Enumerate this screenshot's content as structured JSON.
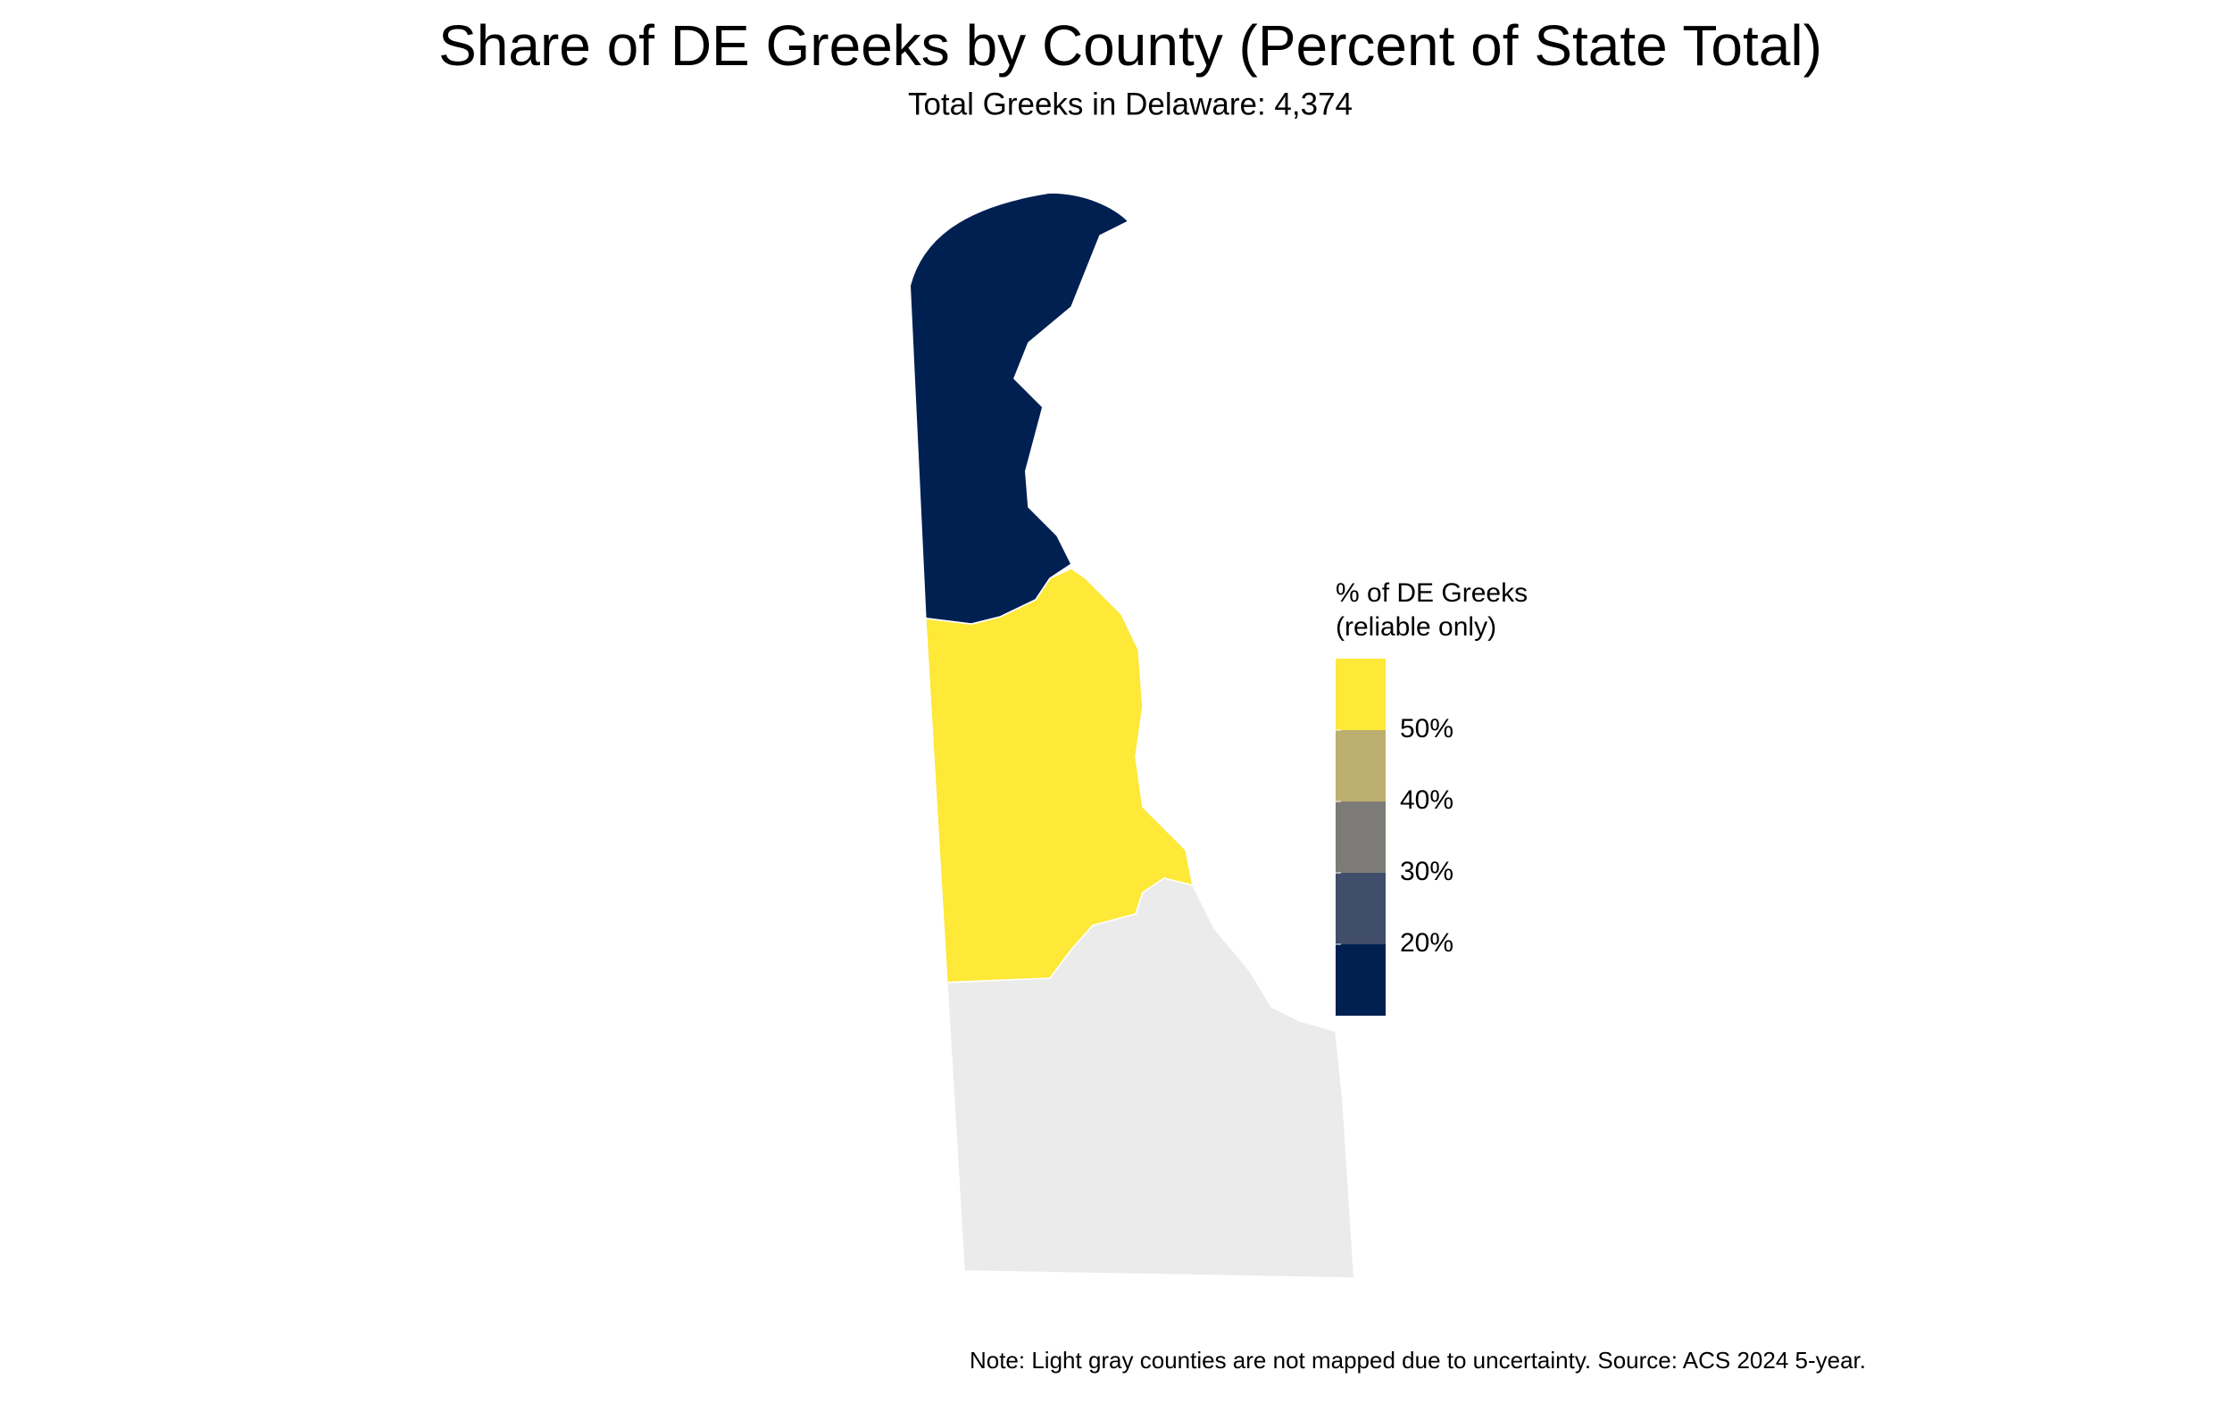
{
  "chart_data": {
    "type": "choropleth",
    "title": "Share of DE Greeks by County (Percent of State Total)",
    "subtitle": "Total Greeks in Delaware: 4,374",
    "note": "Note: Light gray counties are not mapped due to uncertainty. Source: ACS 2024 5-year.",
    "regions": [
      {
        "color": "#002051"
      },
      {
        "color": "#fee838"
      },
      {
        "color": "#ebebeb"
      }
    ],
    "legend": {
      "title": [
        "% of DE Greeks",
        "(reliable only)"
      ],
      "colors": [
        "#002051",
        "#404d6b",
        "#7c7b78",
        "#bcaf6f",
        "#fee838"
      ],
      "lim": [
        10,
        60
      ],
      "ticks": [
        {
          "value": 20,
          "label": "20%"
        },
        {
          "value": 30,
          "label": "30%"
        },
        {
          "value": 40,
          "label": "40%"
        },
        {
          "value": 50,
          "label": "50%"
        }
      ]
    }
  }
}
